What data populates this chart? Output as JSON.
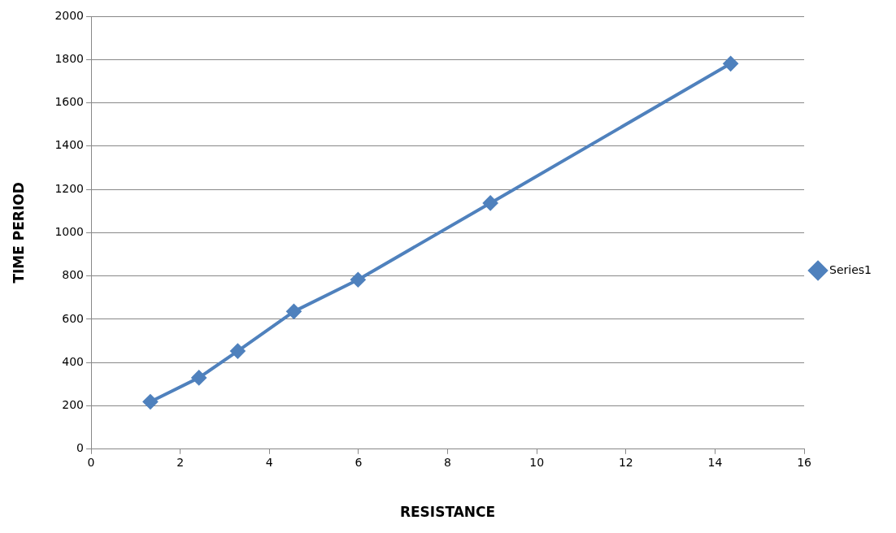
{
  "chart_data": {
    "type": "line",
    "xlabel": "RESISTANCE",
    "ylabel": "TIME PERIOD",
    "x": [
      1.33,
      2.42,
      3.29,
      4.55,
      5.99,
      8.96,
      14.35
    ],
    "series": [
      {
        "name": "Series1",
        "color": "#4f81bd",
        "values": [
          219,
          330,
          453,
          636,
          783,
          1137,
          1781
        ]
      }
    ],
    "xlim": [
      0,
      16
    ],
    "xticks": [
      0,
      2,
      4,
      6,
      8,
      10,
      12,
      14,
      16
    ],
    "ylim": [
      0,
      2000
    ],
    "yticks": [
      0,
      200,
      400,
      600,
      800,
      1000,
      1200,
      1400,
      1600,
      1800,
      2000
    ],
    "grid": "y",
    "legend": "right",
    "marker": "diamond",
    "line_style": "solid"
  }
}
